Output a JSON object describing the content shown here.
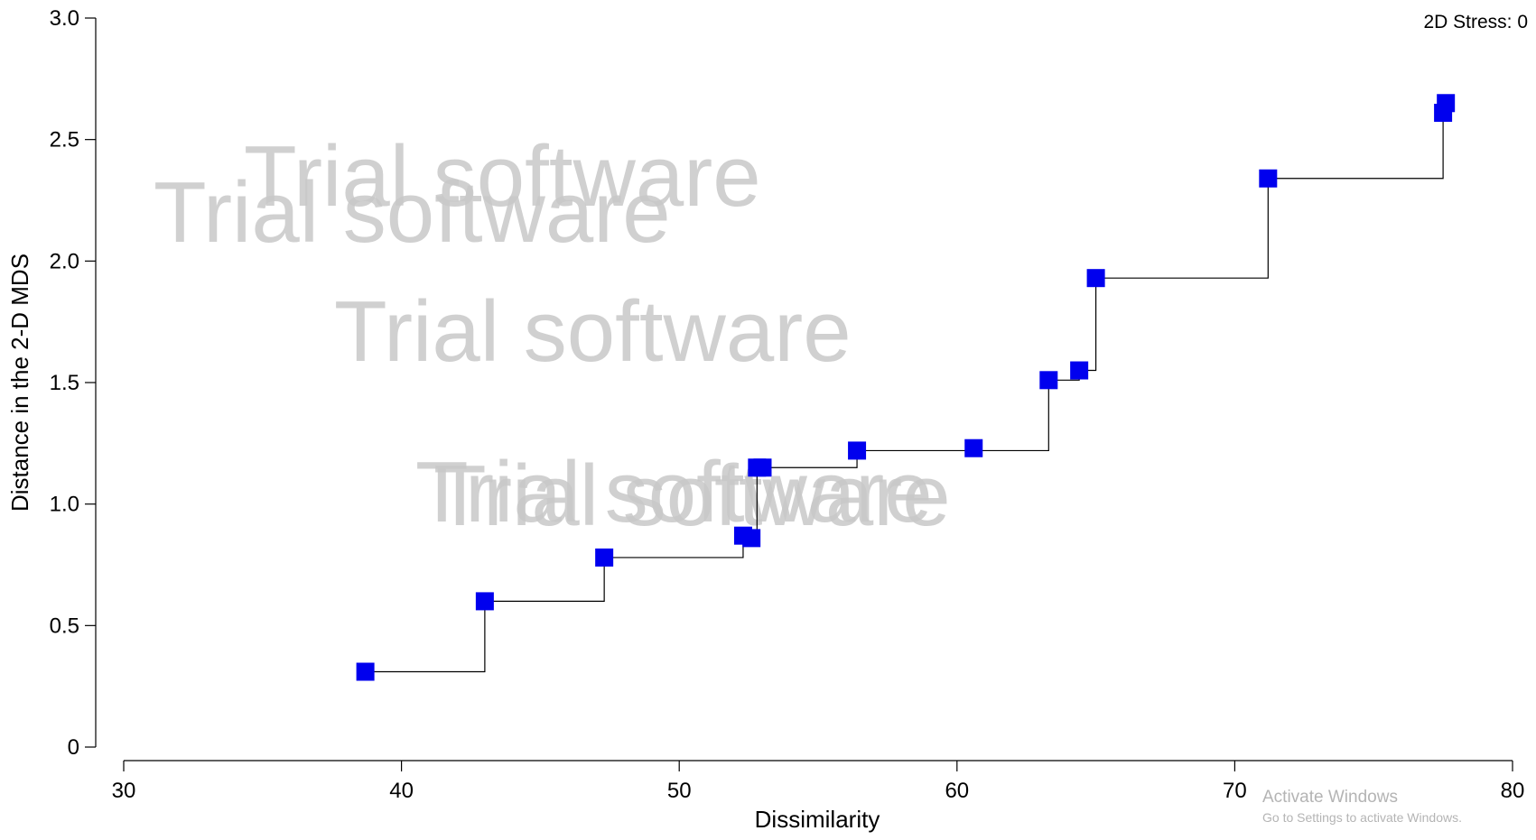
{
  "chart_data": {
    "type": "scatter",
    "xlabel": "Dissimilarity",
    "ylabel": "Distance in the 2-D MDS",
    "xlim": [
      30,
      80
    ],
    "ylim": [
      0,
      3.0
    ],
    "x_ticks": [
      "30",
      "40",
      "50",
      "60",
      "70",
      "80"
    ],
    "y_ticks": [
      "0",
      "0.5",
      "1.0",
      "1.5",
      "2.0",
      "2.5",
      "3.0"
    ],
    "grid": false,
    "annotation": "2D Stress: 0",
    "marker_color": "#0000ee",
    "step_line_color": "#000000",
    "points": [
      {
        "x": 38.7,
        "y": 0.31
      },
      {
        "x": 43.0,
        "y": 0.6
      },
      {
        "x": 47.3,
        "y": 0.78
      },
      {
        "x": 52.3,
        "y": 0.87
      },
      {
        "x": 52.6,
        "y": 0.86
      },
      {
        "x": 52.8,
        "y": 1.15
      },
      {
        "x": 53.0,
        "y": 1.15
      },
      {
        "x": 56.4,
        "y": 1.22
      },
      {
        "x": 60.6,
        "y": 1.23
      },
      {
        "x": 63.3,
        "y": 1.51
      },
      {
        "x": 64.4,
        "y": 1.55
      },
      {
        "x": 65.0,
        "y": 1.93
      },
      {
        "x": 71.2,
        "y": 2.34
      },
      {
        "x": 77.5,
        "y": 2.61
      },
      {
        "x": 77.6,
        "y": 2.65
      }
    ],
    "step_line": [
      {
        "x": 38.7,
        "y": 0.31
      },
      {
        "x": 43.0,
        "y": 0.6
      },
      {
        "x": 47.3,
        "y": 0.78
      },
      {
        "x": 52.3,
        "y": 0.87
      },
      {
        "x": 52.8,
        "y": 1.15
      },
      {
        "x": 56.4,
        "y": 1.22
      },
      {
        "x": 63.3,
        "y": 1.51
      },
      {
        "x": 64.4,
        "y": 1.55
      },
      {
        "x": 65.0,
        "y": 1.93
      },
      {
        "x": 71.2,
        "y": 2.34
      },
      {
        "x": 77.5,
        "y": 2.61
      },
      {
        "x": 77.6,
        "y": 2.65
      }
    ]
  },
  "watermark": {
    "trial_text": "Trial software",
    "activate_title": "Activate Windows",
    "activate_subtitle": "Go to Settings to activate Windows."
  }
}
